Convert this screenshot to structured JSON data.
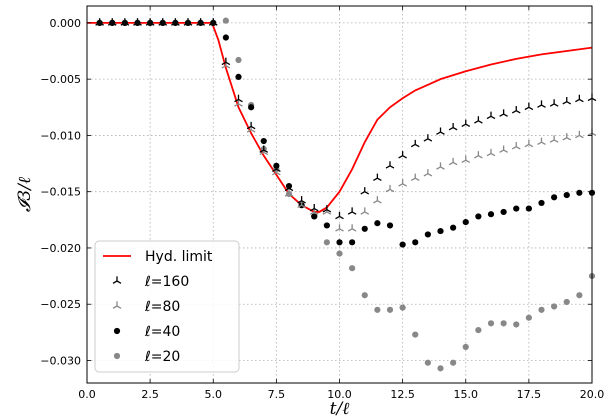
{
  "chart_data": {
    "type": "scatter",
    "xlabel": "t/ℓ",
    "ylabel": "𝓘3/ℓ",
    "xlim": [
      0,
      20
    ],
    "ylim": [
      -0.032,
      0.0015
    ],
    "xticks": [
      0.0,
      2.5,
      5.0,
      7.5,
      10.0,
      12.5,
      15.0,
      17.5,
      20.0
    ],
    "xtick_labels": [
      "0.0",
      "2.5",
      "5.0",
      "7.5",
      "10.0",
      "12.5",
      "15.0",
      "17.5",
      "20.0"
    ],
    "yticks": [
      0.0,
      -0.005,
      -0.01,
      -0.015,
      -0.02,
      -0.025,
      -0.03
    ],
    "ytick_labels": [
      "0.000",
      "−0.005",
      "−0.010",
      "−0.015",
      "−0.020",
      "−0.025",
      "−0.030"
    ],
    "grid": true,
    "legend_position": "lower-left",
    "series": [
      {
        "name": "Hyd. limit",
        "kind": "line",
        "color": "#ff0000",
        "x": [
          0,
          1,
          2,
          3,
          4,
          4.9,
          5.0,
          5.2,
          5.5,
          6.0,
          6.5,
          7.0,
          7.5,
          8.0,
          8.5,
          9.0,
          9.2,
          9.5,
          10.0,
          10.5,
          11.0,
          11.5,
          12.0,
          12.5,
          13.0,
          13.5,
          14.0,
          15.0,
          16.0,
          17.0,
          18.0,
          19.0,
          20.0
        ],
        "y": [
          0,
          0,
          0,
          0,
          0,
          0,
          -0.0003,
          -0.0015,
          -0.004,
          -0.0075,
          -0.0098,
          -0.0118,
          -0.0135,
          -0.0152,
          -0.0162,
          -0.0168,
          -0.0168,
          -0.0164,
          -0.015,
          -0.013,
          -0.0106,
          -0.0086,
          -0.0075,
          -0.0067,
          -0.006,
          -0.0055,
          -0.005,
          -0.0043,
          -0.0037,
          -0.0032,
          -0.0028,
          -0.0025,
          -0.0022
        ]
      },
      {
        "name": "ℓ=160",
        "kind": "markers",
        "marker": "tri",
        "color": "#000000",
        "x": [
          0.5,
          1.0,
          1.5,
          2.0,
          2.5,
          3.0,
          3.5,
          4.0,
          4.5,
          5.0,
          5.5,
          6.0,
          6.5,
          7.0,
          7.5,
          8.0,
          8.5,
          9.0,
          9.5,
          10.0,
          10.5,
          11.0,
          11.5,
          12.0,
          12.5,
          13.0,
          13.5,
          14.0,
          14.5,
          15.0,
          15.5,
          16.0,
          16.5,
          17.0,
          17.5,
          18.0,
          18.5,
          19.0,
          19.5,
          20.0
        ],
        "y": [
          0,
          0,
          0,
          0,
          0,
          0,
          0,
          0,
          0,
          0,
          -0.0035,
          -0.0068,
          -0.0092,
          -0.0113,
          -0.013,
          -0.0147,
          -0.0158,
          -0.0165,
          -0.0166,
          -0.0172,
          -0.0168,
          -0.015,
          -0.0138,
          -0.0127,
          -0.0118,
          -0.0108,
          -0.0103,
          -0.0097,
          -0.0093,
          -0.009,
          -0.0087,
          -0.0083,
          -0.0081,
          -0.0078,
          -0.0075,
          -0.0073,
          -0.0072,
          -0.007,
          -0.0068,
          -0.0067
        ]
      },
      {
        "name": "ℓ=80",
        "kind": "markers",
        "marker": "tri",
        "color": "#888888",
        "x": [
          0.5,
          1.0,
          1.5,
          2.0,
          2.5,
          3.0,
          3.5,
          4.0,
          4.5,
          5.0,
          5.5,
          6.0,
          6.5,
          7.0,
          7.5,
          8.0,
          8.5,
          9.0,
          9.5,
          10.0,
          10.5,
          11.0,
          11.5,
          12.0,
          12.5,
          13.0,
          13.5,
          14.0,
          14.5,
          15.0,
          15.5,
          16.0,
          16.5,
          17.0,
          17.5,
          18.0,
          18.5,
          19.0,
          19.5,
          20.0
        ],
        "y": [
          0,
          0,
          0,
          0,
          0,
          0,
          0,
          0,
          0,
          0,
          -0.0038,
          -0.0072,
          -0.0095,
          -0.0115,
          -0.0133,
          -0.0152,
          -0.0162,
          -0.0168,
          -0.0168,
          -0.0183,
          -0.0183,
          -0.0168,
          -0.0158,
          -0.0148,
          -0.0143,
          -0.0138,
          -0.0134,
          -0.0128,
          -0.0124,
          -0.0122,
          -0.0118,
          -0.0116,
          -0.0113,
          -0.011,
          -0.0108,
          -0.0106,
          -0.0104,
          -0.0102,
          -0.01,
          -0.0098
        ]
      },
      {
        "name": "ℓ=40",
        "kind": "markers",
        "marker": "circle",
        "color": "#000000",
        "x": [
          0.5,
          1.0,
          1.5,
          2.0,
          2.5,
          3.0,
          3.5,
          4.0,
          4.5,
          5.0,
          5.5,
          6.0,
          6.5,
          7.0,
          7.5,
          8.0,
          8.5,
          9.0,
          9.5,
          10.0,
          10.5,
          11.0,
          11.5,
          12.0,
          12.5,
          13.0,
          13.5,
          14.0,
          14.5,
          15.0,
          15.5,
          16.0,
          16.5,
          17.0,
          17.5,
          18.0,
          18.5,
          19.0,
          19.5,
          20.0
        ],
        "y": [
          0,
          0,
          0,
          0,
          0,
          0,
          0,
          0,
          0,
          0,
          -0.0013,
          -0.0048,
          -0.0075,
          -0.0105,
          -0.0127,
          -0.0145,
          -0.0162,
          -0.0172,
          -0.018,
          -0.0195,
          -0.0195,
          -0.0183,
          -0.0178,
          -0.018,
          -0.0197,
          -0.0195,
          -0.0188,
          -0.0185,
          -0.0182,
          -0.0177,
          -0.0172,
          -0.017,
          -0.0168,
          -0.0165,
          -0.0165,
          -0.016,
          -0.0155,
          -0.0153,
          -0.0151,
          -0.0151
        ]
      },
      {
        "name": "ℓ=20",
        "kind": "markers",
        "marker": "circle",
        "color": "#888888",
        "x": [
          0.5,
          1.0,
          1.5,
          2.0,
          2.5,
          3.0,
          3.5,
          4.0,
          4.5,
          5.0,
          5.5,
          6.0,
          6.5,
          7.0,
          7.5,
          8.0,
          8.5,
          9.0,
          9.5,
          10.0,
          10.5,
          11.0,
          11.5,
          12.0,
          12.5,
          13.0,
          13.5,
          14.0,
          14.5,
          15.0,
          15.5,
          16.0,
          16.5,
          17.0,
          17.5,
          18.0,
          18.5,
          19.0,
          19.5,
          20.0
        ],
        "y": [
          0,
          0,
          0,
          0,
          0,
          0,
          0,
          0,
          0,
          0,
          0.0002,
          -0.0033,
          -0.0073,
          -0.0112,
          -0.013,
          -0.0152,
          -0.0162,
          -0.0172,
          -0.0195,
          -0.0205,
          -0.0218,
          -0.0242,
          -0.0255,
          -0.0255,
          -0.0253,
          -0.0277,
          -0.0302,
          -0.0307,
          -0.0302,
          -0.0288,
          -0.0273,
          -0.0267,
          -0.0267,
          -0.0268,
          -0.0262,
          -0.0255,
          -0.0252,
          -0.0248,
          -0.0242,
          -0.0225
        ]
      }
    ]
  }
}
